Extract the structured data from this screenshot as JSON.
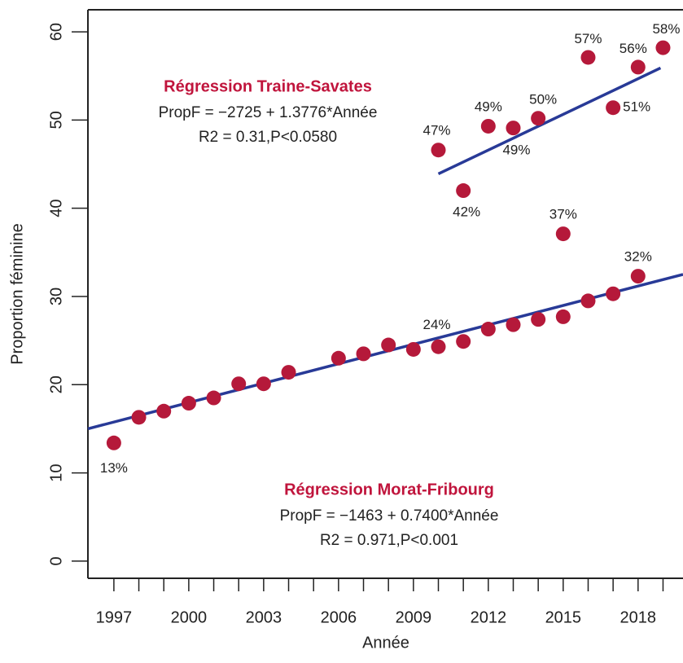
{
  "chart_data": {
    "type": "scatter",
    "x_label": "Année",
    "y_label": "Proportion féminine",
    "xlim": [
      1995.96,
      2019.8
    ],
    "ylim": [
      -1.95,
      62.5
    ],
    "xticks": [
      1997,
      2000,
      2003,
      2006,
      2009,
      2012,
      2015,
      2018
    ],
    "xticks_minor": [
      1998,
      1999,
      2001,
      2002,
      2004,
      2005,
      2007,
      2008,
      2010,
      2011,
      2013,
      2014,
      2016,
      2017,
      2019
    ],
    "yticks": [
      0,
      10,
      20,
      30,
      40,
      50,
      60
    ],
    "series": [
      {
        "name": "Morat-Fribourg",
        "color": "#b5193a",
        "x": [
          1997,
          1998,
          1999,
          2000,
          2001,
          2002,
          2003,
          2004,
          2006,
          2007,
          2008,
          2009,
          2010,
          2011,
          2012,
          2013,
          2014,
          2015,
          2016,
          2017,
          2018
        ],
        "values": [
          13.4,
          16.3,
          17.0,
          17.9,
          18.5,
          20.1,
          20.1,
          21.4,
          23.0,
          23.5,
          24.5,
          24.0,
          24.3,
          24.9,
          26.3,
          26.8,
          27.4,
          27.7,
          29.5,
          30.3,
          32.3
        ],
        "value_labels": [
          "13%",
          null,
          null,
          null,
          null,
          null,
          null,
          null,
          null,
          null,
          null,
          null,
          "24%",
          null,
          null,
          null,
          null,
          null,
          null,
          null,
          "32%"
        ]
      },
      {
        "name": "Traine-Savates",
        "color": "#b5193a",
        "x": [
          2010,
          2011,
          2012,
          2013,
          2014,
          2015,
          2016,
          2017,
          2018,
          2019
        ],
        "values": [
          46.6,
          42.0,
          49.3,
          49.1,
          50.2,
          37.1,
          57.1,
          51.4,
          56.0,
          58.2
        ],
        "value_labels": [
          "47%",
          "42%",
          "49%",
          "49%",
          "50%",
          "37%",
          "57%",
          "51%",
          "56%",
          "58%"
        ]
      }
    ],
    "regression_lines": [
      {
        "color": "#283a97",
        "x": [
          1995.96,
          2019.8
        ],
        "values": [
          15.0,
          32.5
        ]
      },
      {
        "color": "#283a97",
        "x": [
          2010,
          2018.9
        ],
        "values": [
          43.9,
          55.9
        ]
      }
    ],
    "annotations": [
      {
        "title": "Régression Traine-Savates",
        "lines": [
          "PropF = −2725 + 1.3776*Année",
          "R2 = 0.31,P<0.0580"
        ]
      },
      {
        "title": "Régression Morat-Fribourg",
        "lines": [
          "PropF = −1463 + 0.7400*Année",
          "R2 = 0.971,P<0.001"
        ]
      }
    ]
  }
}
